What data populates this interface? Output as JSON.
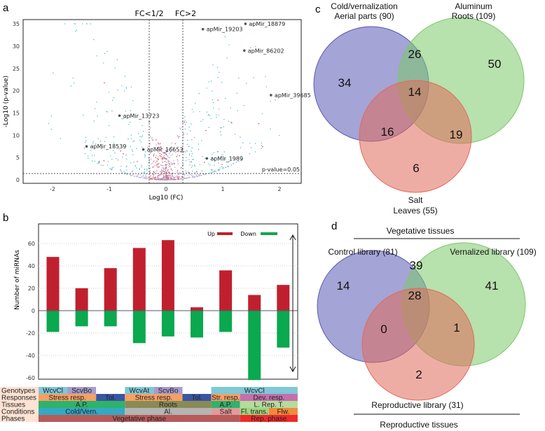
{
  "chart_data": [
    {
      "panel": "a",
      "type": "scatter",
      "title": "",
      "xlabel": "Log10 (FC)",
      "ylabel": "-Log10 (p-value)",
      "xlim": [
        -2.5,
        2.4
      ],
      "ylim": [
        0,
        36
      ],
      "xticks": [
        "-2",
        "-1",
        "0",
        "1",
        "2"
      ],
      "yticks": [
        "0",
        "5",
        "10",
        "15",
        "20",
        "25",
        "30",
        "35"
      ],
      "thresholds": {
        "fc_low_label": "FC<1/2",
        "fc_low": -0.3,
        "fc_high_label": "FC>2",
        "fc_high": 0.3,
        "pvalue_label": "p-value=0.05",
        "pvalue": 1.3
      },
      "labeled_points": [
        {
          "name": "apMir_18879",
          "x": 1.4,
          "y": 35
        },
        {
          "name": "apMir_19203",
          "x": 0.65,
          "y": 33.8
        },
        {
          "name": "apMir_86202",
          "x": 1.38,
          "y": 29
        },
        {
          "name": "apMir_39685",
          "x": 1.85,
          "y": 19
        },
        {
          "name": "apMir_13723",
          "x": -0.82,
          "y": 14.4
        },
        {
          "name": "apMir_18539",
          "x": -1.4,
          "y": 7.5
        },
        {
          "name": "apMir_16653",
          "x": -0.4,
          "y": 6.8
        },
        {
          "name": "apMir_1989",
          "x": 0.72,
          "y": 4.8
        }
      ]
    },
    {
      "panel": "b",
      "type": "bar",
      "ylabel": "Number of miRNAs",
      "ylim": [
        -65,
        75
      ],
      "yticks": [
        "60",
        "40",
        "20",
        "0",
        "-20",
        "-40",
        "-60"
      ],
      "grid": true,
      "legend": "top-right",
      "series": [
        {
          "name": "Up",
          "color": "#c0202e",
          "values": [
            48,
            20,
            38,
            56,
            63,
            3,
            36,
            14,
            23
          ]
        },
        {
          "name": "Down",
          "color": "#0aa84f",
          "values": [
            -19,
            -14,
            -14,
            -29,
            -23,
            -24,
            -19,
            -62,
            -33
          ]
        }
      ],
      "table": [
        {
          "label": "Genotypes",
          "cells": [
            {
              "t": "WcvCl",
              "s": 1,
              "c": "#7fc8d6"
            },
            {
              "t": "ScvBo",
              "s": 1,
              "c": "#a79ccc"
            },
            {
              "t": "",
              "s": 1,
              "c": "#ffffff"
            },
            {
              "t": "WcvAt",
              "s": 1,
              "c": "#7fc8d6"
            },
            {
              "t": "ScvBo",
              "s": 1,
              "c": "#a79ccc"
            },
            {
              "t": "",
              "s": 1,
              "c": "#ffffff"
            },
            {
              "t": "WcvCl",
              "s": 3,
              "c": "#7fc8d6"
            }
          ]
        },
        {
          "label": "Responses",
          "cells": [
            {
              "t": "Stress resp.",
              "s": 2,
              "c": "#f4a066"
            },
            {
              "t": "Tol.",
              "s": 1,
              "c": "#3a55a4"
            },
            {
              "t": "Stress resp.",
              "s": 2,
              "c": "#f4a066"
            },
            {
              "t": "Tol.",
              "s": 1,
              "c": "#3a55a4"
            },
            {
              "t": "Str. resp.",
              "s": 1,
              "c": "#f4a066"
            },
            {
              "t": "Dev. resp.",
              "s": 2,
              "c": "#c46fae"
            }
          ]
        },
        {
          "label": "Tissues",
          "cells": [
            {
              "t": "A.P.",
              "s": 3,
              "c": "#2fb26a"
            },
            {
              "t": "Roots",
              "s": 3,
              "c": "#8a8a55"
            },
            {
              "t": "A.P.",
              "s": 1,
              "c": "#2fb26a"
            },
            {
              "t": "L. Rep. T.",
              "s": 2,
              "c": "#b5dc9a"
            }
          ]
        },
        {
          "label": "Conditions",
          "cells": [
            {
              "t": "Cold/Vern.",
              "s": 3,
              "c": "#33a9c4"
            },
            {
              "t": "Al.",
              "s": 3,
              "c": "#b4b4b4"
            },
            {
              "t": "Salt",
              "s": 1,
              "c": "#e29a9a"
            },
            {
              "t": "Fl. trans.",
              "s": 1,
              "c": "#9ed57e"
            },
            {
              "t": "Flw.",
              "s": 1,
              "c": "#f08a3c"
            }
          ]
        },
        {
          "label": "Phases",
          "cells": [
            {
              "t": "Vegetative phase",
              "s": 7,
              "c": "#b85a5a"
            },
            {
              "t": "Rep. phase",
              "s": 2,
              "c": "#ee2a2a"
            }
          ]
        }
      ]
    },
    {
      "panel": "c",
      "type": "venn",
      "sets": [
        {
          "name": "Cold/vernalization",
          "sub": "Aerial parts (90)",
          "color": "#5a5ab4"
        },
        {
          "name": "Aluminum",
          "sub": "Roots (109)",
          "color": "#7cc86a"
        },
        {
          "name": "Salt",
          "sub": "Leaves (55)",
          "color": "#e06a5a"
        }
      ],
      "regions": {
        "only1": "34",
        "only2": "50",
        "only3": "6",
        "s12": "26",
        "s13": "16",
        "s23": "19",
        "all": "14"
      }
    },
    {
      "panel": "d",
      "type": "venn",
      "top_label": "Vegetative tissues",
      "bottom_label": "Reproductive tissues",
      "sets": [
        {
          "name": "Control library (81)",
          "color": "#5a5ab4"
        },
        {
          "name": "Vernalized library (109)",
          "color": "#7cc86a"
        },
        {
          "name": "Reproductive library (31)",
          "color": "#e06a5a"
        }
      ],
      "regions": {
        "only1": "14",
        "only2": "41",
        "only3": "2",
        "s12": "39",
        "s13": "0",
        "s23": "1",
        "all": "28"
      }
    }
  ],
  "panels": {
    "a": "a",
    "b": "b",
    "c": "c",
    "d": "d"
  }
}
